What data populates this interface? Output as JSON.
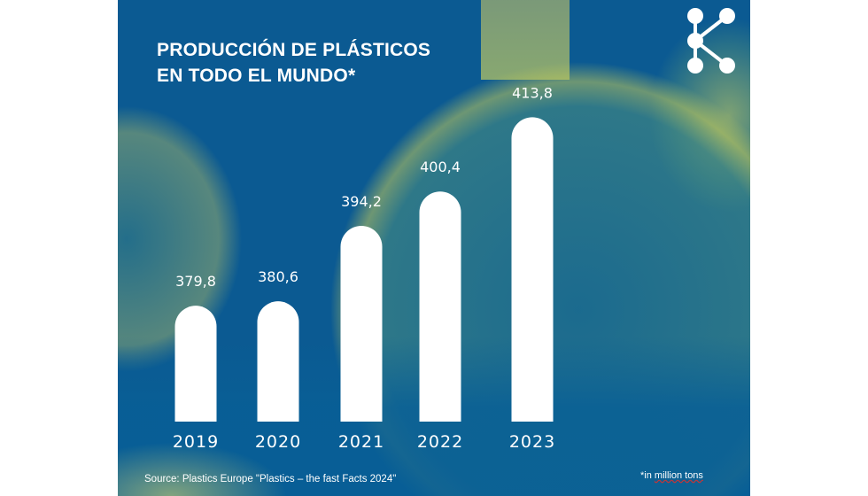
{
  "colors": {
    "background": "#0b5a92",
    "accent": "#e6e65a",
    "bar": "#ffffff"
  },
  "title_line1": "PRODUCCIÓN DE PLÁSTICOS",
  "title_line2": "EN TODO EL MUNDO*",
  "logo_icon": "molecule-network-icon",
  "source": "Source: Plastics Europe \"Plastics – the fast Facts 2024\"",
  "unit_prefix": "*in ",
  "unit_text": "million tons",
  "chart_data": {
    "type": "bar",
    "title": "PRODUCCIÓN DE PLÁSTICOS EN TODO EL MUNDO*",
    "categories": [
      "2019",
      "2020",
      "2021",
      "2022",
      "2023"
    ],
    "values": [
      379.8,
      380.6,
      394.2,
      400.4,
      413.8
    ],
    "value_labels": [
      "379,8",
      "380,6",
      "394,2",
      "400,4",
      "413,8"
    ],
    "unit": "million tons",
    "grid": false,
    "legend": "none"
  }
}
